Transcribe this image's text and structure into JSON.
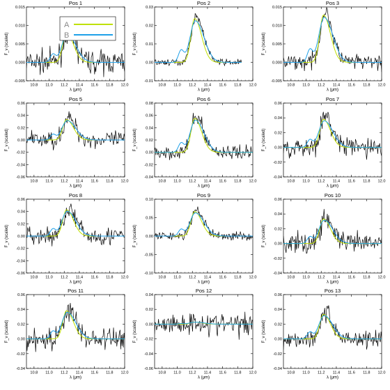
{
  "chart_data": {
    "type": "line",
    "grid": false,
    "legend_position": "top-left of first panel",
    "legend": [
      {
        "label": "A",
        "color": "#bfe000"
      },
      {
        "label": "B",
        "color": "#1ea0e8"
      }
    ],
    "colors": {
      "data": "#000000",
      "A": "#bfe000",
      "B": "#1ea0e8"
    },
    "xlabel": "λ (μm)",
    "ylabel": "F_ν (scaled)",
    "xlim": [
      10.7,
      12.0
    ],
    "xticks": [
      "10.8",
      "11.0",
      "11.2",
      "11.4",
      "11.6",
      "11.8",
      "12.0"
    ],
    "panels": [
      {
        "title": "Pos 1",
        "ylim": [
          -0.005,
          0.015
        ],
        "yticks": [
          "-0.005",
          "0.000",
          "0.005",
          "0.010",
          "0.015"
        ],
        "peak": 0.0085,
        "noise": 0.0022,
        "x_end": 12.0
      },
      {
        "title": "Pos 2",
        "ylim": [
          -0.01,
          0.03
        ],
        "yticks": [
          "-0.01",
          "0.00",
          "0.01",
          "0.02",
          "0.03"
        ],
        "peak": 0.025,
        "noise": 0.0012,
        "x_end": 11.85
      },
      {
        "title": "Pos 3",
        "ylim": [
          -0.005,
          0.015
        ],
        "yticks": [
          "-0.005",
          "0.000",
          "0.005",
          "0.010",
          "0.015"
        ],
        "peak": 0.0135,
        "noise": 0.0015,
        "x_end": 12.0
      },
      {
        "title": "Pos 5",
        "ylim": [
          -0.06,
          0.06
        ],
        "yticks": [
          "-0.06",
          "-0.04",
          "-0.02",
          "0.00",
          "0.02",
          "0.04",
          "0.06"
        ],
        "peak": 0.035,
        "noise": 0.01,
        "x_end": 12.0
      },
      {
        "title": "Pos 6",
        "ylim": [
          -0.04,
          0.08
        ],
        "yticks": [
          "-0.04",
          "-0.02",
          "0.00",
          "0.02",
          "0.04",
          "0.06",
          "0.08"
        ],
        "peak": 0.058,
        "noise": 0.008,
        "x_end": 12.0
      },
      {
        "title": "Pos 7",
        "ylim": [
          -0.04,
          0.06
        ],
        "yticks": [
          "-0.04",
          "-0.02",
          "0.00",
          "0.02",
          "0.04",
          "0.06"
        ],
        "peak": 0.04,
        "noise": 0.01,
        "x_end": 12.0
      },
      {
        "title": "Pos 8",
        "ylim": [
          -0.06,
          0.06
        ],
        "yticks": [
          "-0.06",
          "-0.04",
          "-0.02",
          "0.00",
          "0.02",
          "0.04",
          "0.06"
        ],
        "peak": 0.045,
        "noise": 0.011,
        "x_end": 12.0
      },
      {
        "title": "Pos 9",
        "ylim": [
          -0.1,
          0.1
        ],
        "yticks": [
          "-0.10",
          "-0.05",
          "0.00",
          "0.05",
          "0.10"
        ],
        "peak": 0.07,
        "noise": 0.009,
        "x_end": 12.0
      },
      {
        "title": "Pos 10",
        "ylim": [
          -0.04,
          0.06
        ],
        "yticks": [
          "-0.04",
          "-0.02",
          "0.00",
          "0.02",
          "0.04",
          "0.06"
        ],
        "peak": 0.035,
        "noise": 0.01,
        "x_end": 12.0
      },
      {
        "title": "Pos 11",
        "ylim": [
          -0.04,
          0.06
        ],
        "yticks": [
          "-0.04",
          "-0.02",
          "0.00",
          "0.02",
          "0.04",
          "0.06"
        ],
        "peak": 0.04,
        "noise": 0.011,
        "x_end": 12.0
      },
      {
        "title": "Pos 12",
        "ylim": [
          -0.06,
          0.04
        ],
        "yticks": [
          "-0.06",
          "-0.04",
          "-0.02",
          "0.00",
          "0.02",
          "0.04"
        ],
        "peak": 0.003,
        "noise": 0.011,
        "x_end": 12.0
      },
      {
        "title": "Pos 13",
        "ylim": [
          -0.04,
          0.06
        ],
        "yticks": [
          "-0.04",
          "-0.02",
          "0.00",
          "0.02",
          "0.04",
          "0.06"
        ],
        "peak": 0.035,
        "noise": 0.009,
        "x_end": 12.0
      }
    ]
  }
}
